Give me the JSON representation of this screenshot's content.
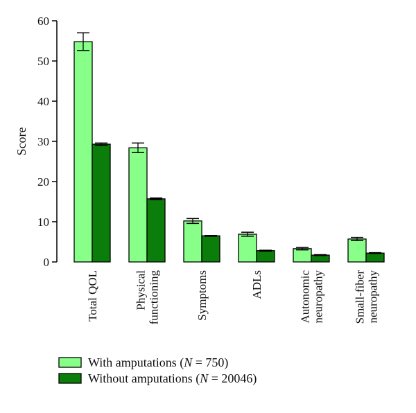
{
  "chart_data": {
    "type": "bar",
    "ylabel": "Score",
    "xlabel": "",
    "ylim": [
      0,
      60
    ],
    "yticks": [
      0,
      10,
      20,
      30,
      40,
      50,
      60
    ],
    "categories": [
      [
        "Total QOL"
      ],
      [
        "Physical",
        "functioning"
      ],
      [
        "Symptoms"
      ],
      [
        "ADLs"
      ],
      [
        "Autonomic",
        "neuropathy"
      ],
      [
        "Small-fiber",
        "neuropathy"
      ]
    ],
    "series": [
      {
        "name": "With amputations (N = 750)",
        "legend_parts": [
          "With amputations (",
          "N",
          " = 750)"
        ],
        "color": "#88ff88",
        "values": [
          54.8,
          28.4,
          10.2,
          6.9,
          3.3,
          5.7
        ],
        "errors": [
          2.2,
          1.2,
          0.6,
          0.5,
          0.3,
          0.4
        ]
      },
      {
        "name": "Without amputations (N = 20046)",
        "legend_parts": [
          "Without amputations (",
          "N",
          " = 20046)"
        ],
        "color": "#0a7d0a",
        "values": [
          29.3,
          15.7,
          6.5,
          2.8,
          1.7,
          2.2
        ],
        "errors": [
          0.3,
          0.2,
          0.1,
          0.1,
          0.1,
          0.1
        ]
      }
    ],
    "legend_position": "bottom-left"
  }
}
